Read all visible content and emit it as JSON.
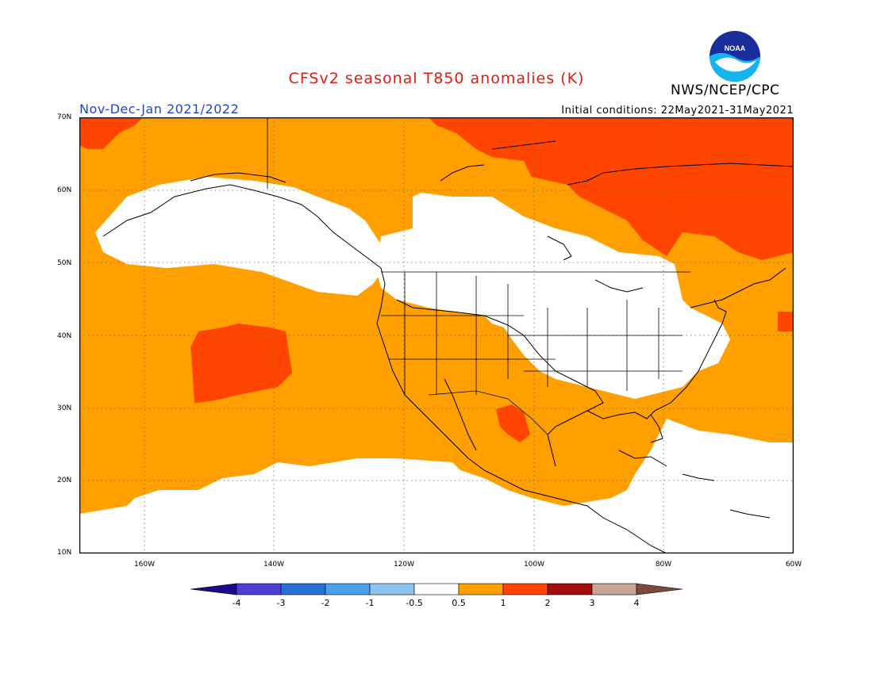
{
  "title": "CFSv2 seasonal T850 anomalies (K)",
  "season": "Nov-Dec-Jan 2021/2022",
  "initial_conditions": "Initial conditions: 22May2021-31May2021",
  "agency": "NWS/NCEP/CPC",
  "logo_text": "NOAA",
  "colors": {
    "title": "#e11b0e",
    "season": "#2244cc",
    "orange": "#ffa000",
    "red_orange": "#ff4500",
    "white": "#ffffff"
  },
  "map": {
    "lon_range": [
      -170,
      -60
    ],
    "lat_range": [
      10,
      70
    ],
    "lat_labels": [
      "70N",
      "60N",
      "50N",
      "40N",
      "30N",
      "20N",
      "10N"
    ],
    "lon_labels": [
      "160W",
      "140W",
      "120W",
      "100W",
      "80W",
      "60W"
    ],
    "grid": "dotted"
  },
  "colorbar": {
    "ticks": [
      "-4",
      "-3",
      "-2",
      "-1",
      "-0.5",
      "0.5",
      "1",
      "2",
      "3",
      "4"
    ],
    "colors": [
      "#1c0a8c",
      "#4a3ed4",
      "#2a6fd6",
      "#4ba0ec",
      "#8cc4f2",
      "#ffffff",
      "#ffa000",
      "#ff4500",
      "#a10c0c",
      "#c9a595",
      "#7a4a3a"
    ]
  }
}
